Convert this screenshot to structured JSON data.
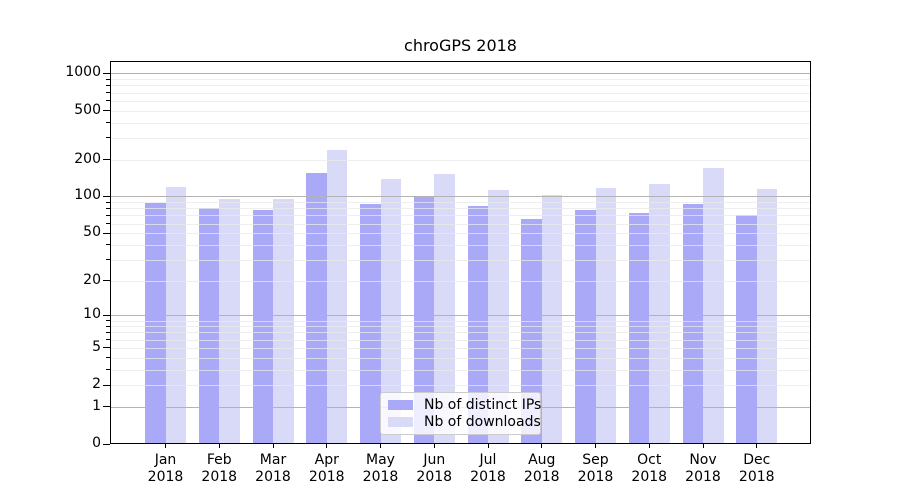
{
  "title": "chroGPS 2018",
  "chart_data": {
    "type": "bar",
    "title": "chroGPS 2018",
    "categories": [
      "Jan 2018",
      "Feb 2018",
      "Mar 2018",
      "Apr 2018",
      "May 2018",
      "Jun 2018",
      "Jul 2018",
      "Aug 2018",
      "Sep 2018",
      "Oct 2018",
      "Nov 2018",
      "Dec 2018"
    ],
    "series": [
      {
        "name": "Nb of distinct IPs",
        "color": "#a9a9f7",
        "values": [
          88,
          81,
          77,
          155,
          87,
          100,
          83,
          65,
          78,
          73,
          87,
          70
        ]
      },
      {
        "name": "Nb of downloads",
        "color": "#d9d9f8",
        "values": [
          120,
          96,
          95,
          238,
          140,
          152,
          114,
          103,
          118,
          126,
          171,
          116
        ]
      }
    ],
    "xlabel": "",
    "ylabel": "",
    "y_axis": {
      "scale": "log(1+y)",
      "tick_values": [
        0,
        1,
        2,
        5,
        10,
        20,
        50,
        100,
        200,
        500,
        1000
      ],
      "ylim": [
        0,
        1260
      ],
      "minor_grid_values": [
        2,
        3,
        4,
        5,
        6,
        7,
        8,
        9,
        20,
        30,
        40,
        50,
        60,
        70,
        80,
        90,
        200,
        300,
        400,
        500,
        600,
        700,
        800,
        900
      ]
    },
    "grid": true,
    "legend_position": "lower center"
  },
  "colors": {
    "background": "#ffffff",
    "spine": "#000000",
    "major_grid": "#b3b3b3",
    "minor_grid": "#e9e9e9",
    "legend_border": "#cccccc"
  }
}
